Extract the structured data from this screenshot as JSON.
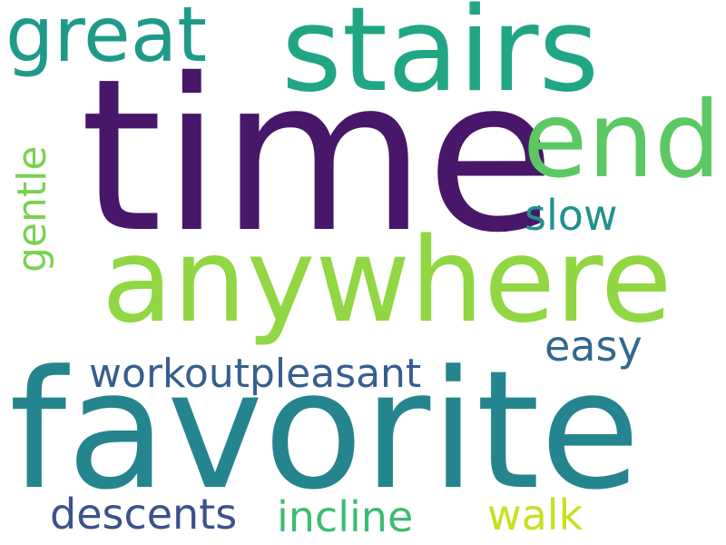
{
  "words": {
    "time": {
      "text": "time",
      "color": "#481769"
    },
    "favorite": {
      "text": "favorite",
      "color": "#25858E"
    },
    "stairs": {
      "text": "stairs",
      "color": "#21A685"
    },
    "anywhere": {
      "text": "anywhere",
      "color": "#90D743"
    },
    "end": {
      "text": "end",
      "color": "#5CC863"
    },
    "great": {
      "text": "great",
      "color": "#1F9A8A"
    },
    "workoutpleasant": {
      "text": "workoutpleasant",
      "color": "#355F8D"
    },
    "slow": {
      "text": "slow",
      "color": "#20928C"
    },
    "easy": {
      "text": "easy",
      "color": "#31688E"
    },
    "gentle": {
      "text": "gentle",
      "color": "#7AD151"
    },
    "descents": {
      "text": "descents",
      "color": "#3B528B"
    },
    "incline": {
      "text": "incline",
      "color": "#3DBC74"
    },
    "walk": {
      "text": "walk",
      "color": "#C8E020"
    }
  }
}
